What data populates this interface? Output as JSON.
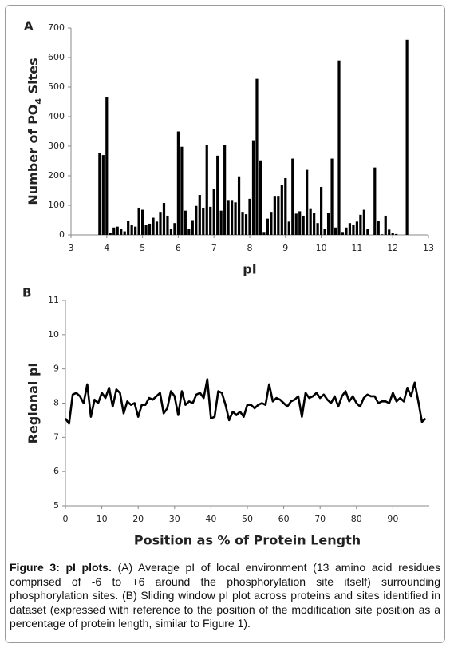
{
  "chart_data": [
    {
      "type": "bar",
      "panel": "A",
      "ylabel_parts": [
        "Number of PO",
        "4",
        " Sites"
      ],
      "xlabel": "pI",
      "x": [
        3.8,
        3.9,
        4.0,
        4.1,
        4.2,
        4.3,
        4.4,
        4.5,
        4.6,
        4.7,
        4.8,
        4.9,
        5.0,
        5.1,
        5.2,
        5.3,
        5.4,
        5.5,
        5.6,
        5.7,
        5.8,
        5.9,
        6.0,
        6.1,
        6.2,
        6.3,
        6.4,
        6.5,
        6.6,
        6.7,
        6.8,
        6.9,
        7.0,
        7.1,
        7.2,
        7.3,
        7.4,
        7.5,
        7.6,
        7.7,
        7.8,
        7.9,
        8.0,
        8.1,
        8.2,
        8.3,
        8.4,
        8.5,
        8.6,
        8.7,
        8.8,
        8.9,
        9.0,
        9.1,
        9.2,
        9.3,
        9.4,
        9.5,
        9.6,
        9.7,
        9.8,
        9.9,
        10.0,
        10.1,
        10.2,
        10.3,
        10.4,
        10.5,
        10.6,
        10.7,
        10.8,
        10.9,
        11.0,
        11.1,
        11.2,
        11.3,
        11.4,
        11.5,
        11.6,
        11.7,
        11.8,
        11.9,
        12.0,
        12.1,
        12.2,
        12.3,
        12.4
      ],
      "values": [
        278,
        270,
        465,
        8,
        25,
        28,
        20,
        12,
        48,
        33,
        28,
        92,
        85,
        35,
        38,
        58,
        45,
        78,
        108,
        65,
        20,
        40,
        350,
        298,
        82,
        20,
        50,
        98,
        135,
        92,
        305,
        95,
        155,
        268,
        82,
        305,
        118,
        118,
        110,
        198,
        78,
        70,
        122,
        320,
        528,
        252,
        10,
        55,
        78,
        132,
        132,
        168,
        192,
        45,
        258,
        72,
        80,
        65,
        220,
        90,
        75,
        40,
        162,
        20,
        75,
        258,
        25,
        590,
        10,
        25,
        40,
        35,
        45,
        68,
        85,
        20,
        0,
        228,
        48,
        2,
        65,
        18,
        8,
        3,
        0,
        0,
        660
      ],
      "color": "#000000",
      "xlim": [
        3,
        13
      ],
      "xticks": [
        3,
        4,
        5,
        6,
        7,
        8,
        9,
        10,
        11,
        12,
        13
      ],
      "ylim": [
        0,
        700
      ],
      "yticks": [
        0,
        100,
        200,
        300,
        400,
        500,
        600,
        700
      ]
    },
    {
      "type": "line",
      "panel": "B",
      "ylabel_parts": [
        "Regional pI"
      ],
      "xlabel": "Position as % of Protein Length",
      "x": [
        0,
        1,
        2,
        3,
        4,
        5,
        6,
        7,
        8,
        9,
        10,
        11,
        12,
        13,
        14,
        15,
        16,
        17,
        18,
        19,
        20,
        21,
        22,
        23,
        24,
        25,
        26,
        27,
        28,
        29,
        30,
        31,
        32,
        33,
        34,
        35,
        36,
        37,
        38,
        39,
        40,
        41,
        42,
        43,
        44,
        45,
        46,
        47,
        48,
        49,
        50,
        51,
        52,
        53,
        54,
        55,
        56,
        57,
        58,
        59,
        60,
        61,
        62,
        63,
        64,
        65,
        66,
        67,
        68,
        69,
        70,
        71,
        72,
        73,
        74,
        75,
        76,
        77,
        78,
        79,
        80,
        81,
        82,
        83,
        84,
        85,
        86,
        87,
        88,
        89,
        90,
        91,
        92,
        93,
        94,
        95,
        96,
        97,
        98,
        99
      ],
      "values": [
        7.55,
        7.4,
        8.25,
        8.3,
        8.2,
        8.0,
        8.55,
        7.6,
        8.1,
        8.0,
        8.3,
        8.15,
        8.45,
        7.9,
        8.4,
        8.3,
        7.7,
        8.05,
        7.95,
        8.0,
        7.6,
        7.95,
        7.95,
        8.15,
        8.1,
        8.2,
        8.3,
        7.7,
        7.85,
        8.35,
        8.2,
        7.65,
        8.35,
        7.95,
        8.05,
        8.0,
        8.25,
        8.3,
        8.15,
        8.7,
        7.55,
        7.6,
        8.35,
        8.3,
        7.95,
        7.5,
        7.75,
        7.65,
        7.75,
        7.6,
        7.95,
        7.95,
        7.85,
        7.95,
        8.0,
        7.95,
        8.55,
        8.05,
        8.15,
        8.1,
        8.0,
        7.9,
        8.05,
        8.1,
        8.2,
        7.6,
        8.3,
        8.15,
        8.2,
        8.3,
        8.15,
        8.25,
        8.1,
        8.0,
        8.2,
        7.9,
        8.2,
        8.35,
        8.05,
        8.2,
        8.0,
        7.9,
        8.15,
        8.25,
        8.2,
        8.2,
        8.0,
        8.05,
        8.05,
        8.0,
        8.3,
        8.05,
        8.15,
        8.05,
        8.45,
        8.2,
        8.6,
        8.05,
        7.45,
        7.55
      ],
      "color": "#000000",
      "xlim": [
        0,
        100
      ],
      "xticks": [
        0,
        10,
        20,
        30,
        40,
        50,
        60,
        70,
        80,
        90
      ],
      "ylim": [
        5,
        11
      ],
      "yticks": [
        5,
        6,
        7,
        8,
        9,
        10,
        11
      ]
    }
  ],
  "caption": {
    "label": "Figure 3: pI plots.",
    "text": "(A) Average pI of local environment (13 amino acid residues comprised of -6 to +6 around the phosphorylation site itself) surrounding phosphorylation sites. (B) Sliding window pI plot across proteins and sites identified in dataset (expressed with reference to the position of the modification site position as a percentage of protein length, similar to Figure 1)."
  }
}
